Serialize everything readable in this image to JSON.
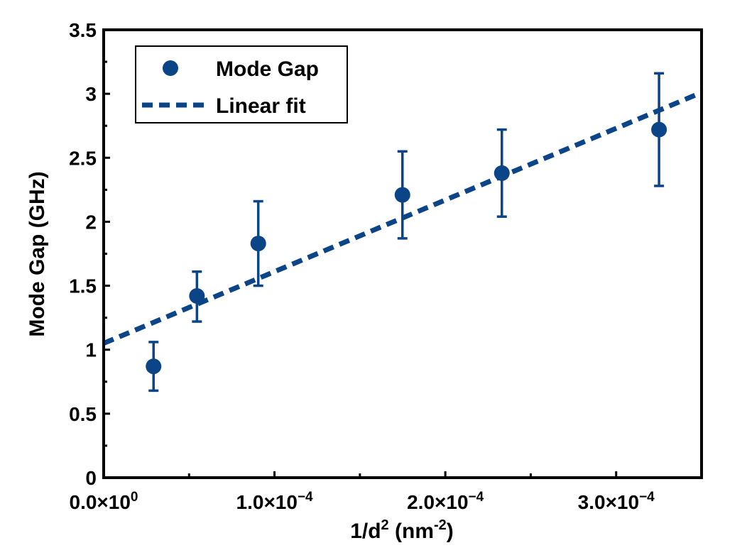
{
  "chart_data": {
    "type": "scatter",
    "xlabel": "1/d",
    "xlabel_sup": "2",
    "xlabel_unit_open": " (nm",
    "xlabel_unit_sup": "-2",
    "xlabel_unit_close": ")",
    "ylabel": "Mode Gap (GHz)",
    "xlim": [
      0,
      0.00035
    ],
    "ylim": [
      0,
      3.5
    ],
    "grid": false,
    "legend_position": "top-left",
    "x_ticks": [
      {
        "value": 0,
        "mantissa": "0.0×10",
        "exponent": "0"
      },
      {
        "value": 0.0001,
        "mantissa": "1.0×10",
        "exponent": "−4"
      },
      {
        "value": 0.0002,
        "mantissa": "2.0×10",
        "exponent": "−4"
      },
      {
        "value": 0.0003,
        "mantissa": "3.0×10",
        "exponent": "−4"
      }
    ],
    "y_ticks": [
      {
        "value": 0,
        "label": "0"
      },
      {
        "value": 0.5,
        "label": "0.5"
      },
      {
        "value": 1,
        "label": "1"
      },
      {
        "value": 1.5,
        "label": "1.5"
      },
      {
        "value": 2,
        "label": "2"
      },
      {
        "value": 2.5,
        "label": "2.5"
      },
      {
        "value": 3,
        "label": "3"
      },
      {
        "value": 3.5,
        "label": "3.5"
      }
    ],
    "series": [
      {
        "name": "Mode Gap",
        "kind": "points_with_errorbars",
        "color": "#0b4587",
        "points": [
          {
            "x": 2.92e-05,
            "y": 0.87,
            "lo": 0.68,
            "hi": 1.06
          },
          {
            "x": 5.46e-05,
            "y": 1.42,
            "lo": 1.22,
            "hi": 1.61
          },
          {
            "x": 9.05e-05,
            "y": 1.83,
            "lo": 1.5,
            "hi": 2.16
          },
          {
            "x": 0.0001749,
            "y": 2.21,
            "lo": 1.87,
            "hi": 2.55
          },
          {
            "x": 0.0002331,
            "y": 2.38,
            "lo": 2.04,
            "hi": 2.72
          },
          {
            "x": 0.0003251,
            "y": 2.72,
            "lo": 2.28,
            "hi": 3.16
          }
        ]
      },
      {
        "name": "Linear fit",
        "kind": "dashed_line",
        "color": "#0b4587",
        "intercept": 1.05,
        "slope": 5600
      }
    ]
  }
}
